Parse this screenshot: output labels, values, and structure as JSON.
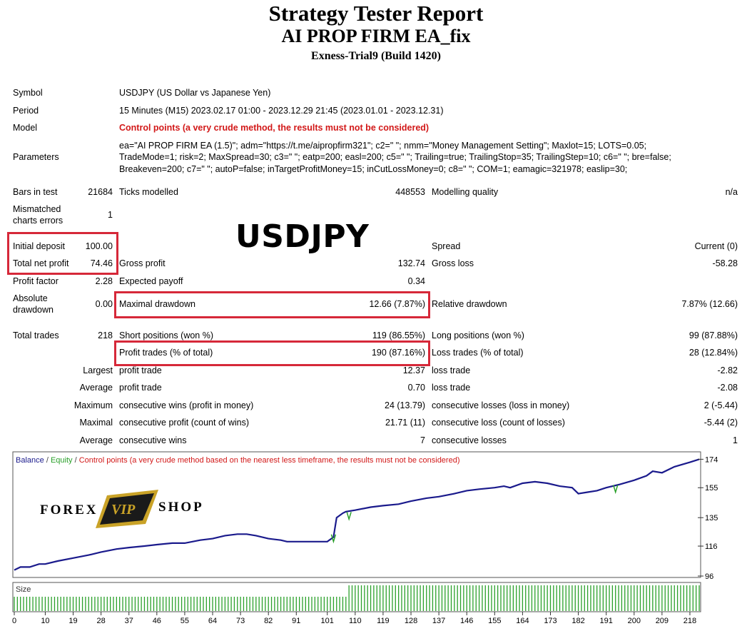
{
  "header": {
    "title": "Strategy Tester Report",
    "subtitle": "AI PROP FIRM EA_fix",
    "build": "Exness-Trial9 (Build 1420)"
  },
  "info": {
    "symbol_label": "Symbol",
    "symbol_value": "USDJPY (US Dollar vs Japanese Yen)",
    "period_label": "Period",
    "period_value": "15 Minutes (M15) 2023.02.17 01:00 - 2023.12.29 21:45 (2023.01.01 - 2023.12.31)",
    "model_label": "Model",
    "model_value": "Control points (a very crude method, the results must not be considered)",
    "parameters_label": "Parameters",
    "parameters_lines": [
      "ea=\"AI PROP FIRM EA (1.5)\"; adm=\"https://t.me/aipropfirm321\"; c2=\" \"; nmm=\"Money Management Setting\"; Maxlot=15; LOTS=0.05;",
      "TradeMode=1; risk=2; MaxSpread=30; c3=\" \"; eatp=200; easl=200; c5=\" \"; Trailing=true; TrailingStop=35; TrailingStep=10; c6=\" \"; bre=false;",
      "Breakeven=200; c7=\" \"; autoP=false; inTargetProfitMoney=15; inCutLossMoney=0; c8=\" \"; COM=1; eamagic=321978; easlip=30;"
    ]
  },
  "stats": {
    "bars_label": "Bars in test",
    "bars_value": "21684",
    "ticks_label": "Ticks modelled",
    "ticks_value": "448553",
    "quality_label": "Modelling quality",
    "quality_value": "n/a",
    "mismatch_label_1": "Mismatched",
    "mismatch_label_2": "charts errors",
    "mismatch_value": "1",
    "initial_deposit_label": "Initial deposit",
    "initial_deposit_value": "100.00",
    "spread_label": "Spread",
    "spread_value": "Current (0)",
    "net_profit_label": "Total net profit",
    "net_profit_value": "74.46",
    "gross_profit_label": "Gross profit",
    "gross_profit_value": "132.74",
    "gross_loss_label": "Gross loss",
    "gross_loss_value": "-58.28",
    "profit_factor_label": "Profit factor",
    "profit_factor_value": "2.28",
    "expected_payoff_label": "Expected payoff",
    "expected_payoff_value": "0.34",
    "abs_dd_label_1": "Absolute",
    "abs_dd_label_2": "drawdown",
    "abs_dd_value": "0.00",
    "max_dd_label": "Maximal drawdown",
    "max_dd_value": "12.66 (7.87%)",
    "rel_dd_label": "Relative drawdown",
    "rel_dd_value": "7.87% (12.66)",
    "total_trades_label": "Total trades",
    "total_trades_value": "218",
    "short_label": "Short positions (won %)",
    "short_value": "119 (86.55%)",
    "long_label": "Long positions (won %)",
    "long_value": "99 (87.88%)",
    "profit_trades_label": "Profit trades (% of total)",
    "profit_trades_value": "190 (87.16%)",
    "loss_trades_label": "Loss trades (% of total)",
    "loss_trades_value": "28 (12.84%)",
    "largest_label": "Largest",
    "largest_profit_label": "profit trade",
    "largest_profit_value": "12.37",
    "largest_loss_label": "loss trade",
    "largest_loss_value": "-2.82",
    "average_label": "Average",
    "average_profit_label": "profit trade",
    "average_profit_value": "0.70",
    "average_loss_label": "loss trade",
    "average_loss_value": "-2.08",
    "maximum_label": "Maximum",
    "max_cons_wins_label": "consecutive wins (profit in money)",
    "max_cons_wins_value": "24 (13.79)",
    "max_cons_losses_label": "consecutive losses (loss in money)",
    "max_cons_losses_value": "2 (-5.44)",
    "maximal_label": "Maximal",
    "maximal_cons_profit_label": "consecutive profit (count of wins)",
    "maximal_cons_profit_value": "21.71 (11)",
    "maximal_cons_loss_label": "consecutive loss (count of losses)",
    "maximal_cons_loss_value": "-5.44 (2)",
    "average2_label": "Average",
    "avg_cons_wins_label": "consecutive wins",
    "avg_cons_wins_value": "7",
    "avg_cons_losses_label": "consecutive losses",
    "avg_cons_losses_value": "1"
  },
  "overlay": {
    "big_symbol": "USDJPY",
    "logo_left": "FOREX",
    "logo_badge": "VIP",
    "logo_right": "SHOP"
  },
  "colors": {
    "highlight_box": "#d62839",
    "balance": "#1a1a8c",
    "equity": "#2aa02a",
    "control_warning": "#d21818",
    "volume": "#2aa02a",
    "logo_gold": "#c9a227"
  },
  "chart_data": {
    "type": "line",
    "legend": {
      "balance": "Balance",
      "equity": "Equity",
      "warning": "Control points (a very crude method based on the nearest less timeframe, the results must not be considered)",
      "sep": "/"
    },
    "size_label": "Size",
    "y_ticks": [
      96,
      116,
      135,
      155,
      174
    ],
    "ylim": [
      96,
      178
    ],
    "x_ticks": [
      0,
      10,
      19,
      28,
      37,
      46,
      55,
      64,
      73,
      82,
      91,
      101,
      110,
      119,
      128,
      137,
      146,
      155,
      164,
      173,
      182,
      191,
      200,
      209,
      218
    ],
    "xlim": [
      0,
      221
    ],
    "series": [
      {
        "name": "Balance",
        "x": [
          0,
          2,
          5,
          8,
          10,
          14,
          19,
          24,
          28,
          33,
          37,
          42,
          46,
          51,
          55,
          60,
          64,
          68,
          72,
          75,
          78,
          82,
          86,
          88,
          91,
          96,
          101,
          103,
          104,
          106,
          107,
          110,
          115,
          119,
          124,
          128,
          133,
          137,
          142,
          146,
          150,
          155,
          158,
          160,
          164,
          168,
          172,
          176,
          180,
          182,
          185,
          188,
          191,
          195,
          200,
          204,
          206,
          209,
          213,
          218,
          221
        ],
        "values": [
          100,
          102,
          102,
          104,
          104,
          106,
          108,
          110,
          112,
          114,
          115,
          116,
          117,
          118,
          118,
          120,
          121,
          123,
          124,
          124,
          123,
          121,
          120,
          119,
          119,
          119,
          119,
          122,
          135,
          138,
          139,
          140,
          142,
          143,
          144,
          146,
          148,
          149,
          151,
          153,
          154,
          155,
          156,
          155,
          158,
          159,
          158,
          156,
          155,
          151,
          152,
          153,
          155,
          157,
          160,
          163,
          166,
          165,
          169,
          172,
          174
        ]
      }
    ],
    "equity_dips": [
      [
        108,
        134
      ],
      [
        103,
        119
      ],
      [
        194,
        152
      ]
    ]
  }
}
